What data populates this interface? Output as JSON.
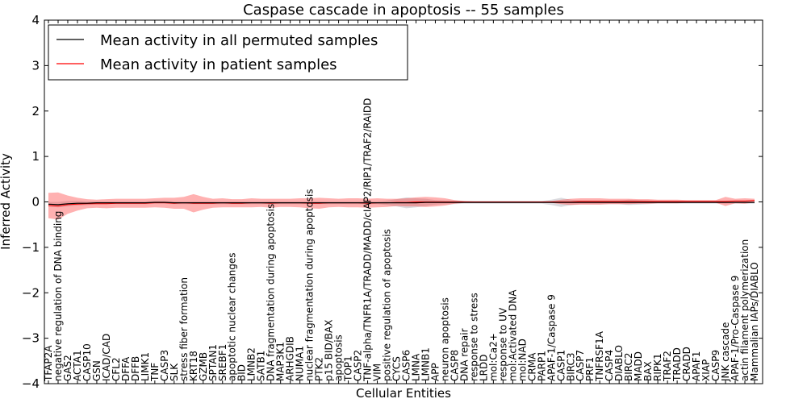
{
  "chart_data": {
    "type": "line",
    "title": "Caspase cascade in apoptosis -- 55 samples",
    "xlabel": "Cellular Entities",
    "ylabel": "Inferred Activity",
    "ylim": [
      -4,
      4
    ],
    "yticks": [
      "−4",
      "−3",
      "−2",
      "−1",
      "0",
      "1",
      "2",
      "3",
      "4"
    ],
    "grid": false,
    "legend_position": "top-left",
    "categories": [
      "TFAP2A",
      "negative regulation of DNA binding",
      "GAS2",
      "ACTA1",
      "CASP10",
      "GSN",
      "ICAD/CAD",
      "CFL2",
      "DFFA",
      "DFFB",
      "LIMK1",
      "TNF",
      "CASP3",
      "SLK",
      "stress fiber formation",
      "KRT18",
      "GZMB",
      "SPTAN1",
      "SREBF1",
      "apoptotic nuclear changes",
      "BID",
      "LMNB2",
      "SATB1",
      "DNA fragmentation during apoptosis",
      "MAP3K1",
      "ARHGDIB",
      "NUMA1",
      "nuclear fragmentation during apoptosis",
      "PTK2",
      "p15 BID/BAX",
      "apoptosis",
      "TOP1",
      "CASP2",
      "TNF-alpha/TNFR1A/TRADD/MADD/cIAP2/RIP1/TRAF2/RAIDD",
      "VIM",
      "positive regulation of apoptosis",
      "CYCS",
      "CASP6",
      "LMNA",
      "LMNB1",
      "APP",
      "neuron apoptosis",
      "CASP8",
      "DNA repair",
      "response to stress",
      "LRDD",
      "mol:Ca2+",
      "response to UV",
      "mol:Activated DNA",
      "mol:NAD",
      "CRMA",
      "PARP1",
      "APAF-1/Caspase 9",
      "CASP1",
      "BIRC3",
      "CASP7",
      "PRF1",
      "TNFRSF1A",
      "CASP4",
      "DIABLO",
      "BIRC2",
      "MADD",
      "BAX",
      "RIPK1",
      "TRAF2",
      "TRADD",
      "CRADD",
      "APAF1",
      "XIAP",
      "CASP9",
      "JNK cascade",
      "APAF-1/Pro-Caspase 9",
      "actin filament polymerization",
      "Mammalian IAPs/DIABLO"
    ],
    "series": [
      {
        "name": "Mean activity in all permuted samples",
        "color": "#000000",
        "values": [
          -0.05,
          -0.06,
          -0.04,
          -0.03,
          -0.03,
          -0.02,
          -0.02,
          -0.02,
          -0.02,
          -0.02,
          -0.02,
          -0.01,
          -0.01,
          -0.02,
          -0.02,
          -0.02,
          -0.02,
          -0.02,
          -0.02,
          -0.02,
          -0.02,
          -0.02,
          -0.02,
          -0.02,
          -0.02,
          -0.02,
          -0.02,
          -0.02,
          -0.02,
          -0.02,
          -0.02,
          -0.02,
          -0.02,
          -0.02,
          -0.02,
          -0.02,
          -0.02,
          -0.02,
          -0.02,
          -0.01,
          -0.01,
          -0.01,
          -0.01,
          -0.01,
          -0.01,
          -0.01,
          -0.01,
          -0.01,
          -0.01,
          -0.01,
          -0.01,
          -0.01,
          -0.01,
          -0.01,
          -0.01,
          -0.01,
          -0.01,
          -0.01,
          -0.01,
          -0.01,
          -0.01,
          -0.01,
          -0.01,
          -0.01,
          -0.01,
          -0.01,
          -0.01,
          -0.01,
          -0.01,
          -0.01,
          -0.01,
          -0.01,
          -0.01,
          -0.01
        ],
        "band": [
          0.05,
          0.06,
          0.06,
          0.05,
          0.04,
          0.03,
          0.03,
          0.03,
          0.03,
          0.03,
          0.03,
          0.03,
          0.03,
          0.03,
          0.03,
          0.03,
          0.03,
          0.03,
          0.03,
          0.03,
          0.03,
          0.03,
          0.03,
          0.03,
          0.03,
          0.03,
          0.03,
          0.03,
          0.03,
          0.03,
          0.03,
          0.03,
          0.03,
          0.03,
          0.03,
          0.05,
          0.08,
          0.12,
          0.1,
          0.08,
          0.05,
          0.04,
          0.04,
          0.03,
          0.03,
          0.03,
          0.03,
          0.03,
          0.03,
          0.03,
          0.03,
          0.03,
          0.06,
          0.1,
          0.06,
          0.04,
          0.04,
          0.04,
          0.04,
          0.04,
          0.06,
          0.05,
          0.04,
          0.03,
          0.03,
          0.03,
          0.03,
          0.03,
          0.03,
          0.03,
          0.03,
          0.03,
          0.03,
          0.03
        ]
      },
      {
        "name": "Mean activity in patient samples",
        "color": "#ff0000",
        "values": [
          -0.08,
          -0.09,
          -0.06,
          -0.05,
          -0.04,
          -0.04,
          -0.04,
          -0.03,
          -0.03,
          -0.03,
          -0.03,
          -0.02,
          -0.02,
          -0.03,
          -0.02,
          -0.03,
          -0.03,
          -0.03,
          -0.02,
          -0.03,
          -0.03,
          -0.02,
          -0.02,
          -0.03,
          -0.02,
          -0.02,
          -0.02,
          -0.03,
          -0.03,
          -0.02,
          -0.02,
          -0.02,
          -0.02,
          -0.03,
          -0.02,
          -0.02,
          -0.01,
          -0.01,
          0.0,
          0.0,
          0.0,
          0.0,
          0.0,
          0.0,
          0.0,
          0.0,
          0.0,
          0.0,
          0.0,
          0.0,
          0.0,
          0.0,
          0.0,
          0.0,
          0.0,
          0.01,
          0.01,
          0.01,
          0.01,
          0.01,
          0.01,
          0.01,
          0.01,
          0.01,
          0.01,
          0.01,
          0.01,
          0.01,
          0.01,
          0.01,
          0.01,
          0.02,
          0.02,
          0.03
        ],
        "band": [
          0.28,
          0.3,
          0.2,
          0.14,
          0.1,
          0.09,
          0.1,
          0.1,
          0.1,
          0.1,
          0.1,
          0.1,
          0.11,
          0.12,
          0.13,
          0.2,
          0.14,
          0.1,
          0.1,
          0.09,
          0.09,
          0.1,
          0.09,
          0.1,
          0.09,
          0.09,
          0.1,
          0.11,
          0.12,
          0.1,
          0.09,
          0.1,
          0.1,
          0.1,
          0.1,
          0.09,
          0.08,
          0.09,
          0.1,
          0.11,
          0.1,
          0.08,
          0.04,
          0.02,
          0.01,
          0.01,
          0.01,
          0.01,
          0.01,
          0.01,
          0.01,
          0.01,
          0.02,
          0.05,
          0.07,
          0.07,
          0.07,
          0.07,
          0.06,
          0.06,
          0.06,
          0.05,
          0.05,
          0.04,
          0.04,
          0.04,
          0.03,
          0.03,
          0.03,
          0.03,
          0.1,
          0.05,
          0.06,
          0.04
        ]
      }
    ]
  }
}
